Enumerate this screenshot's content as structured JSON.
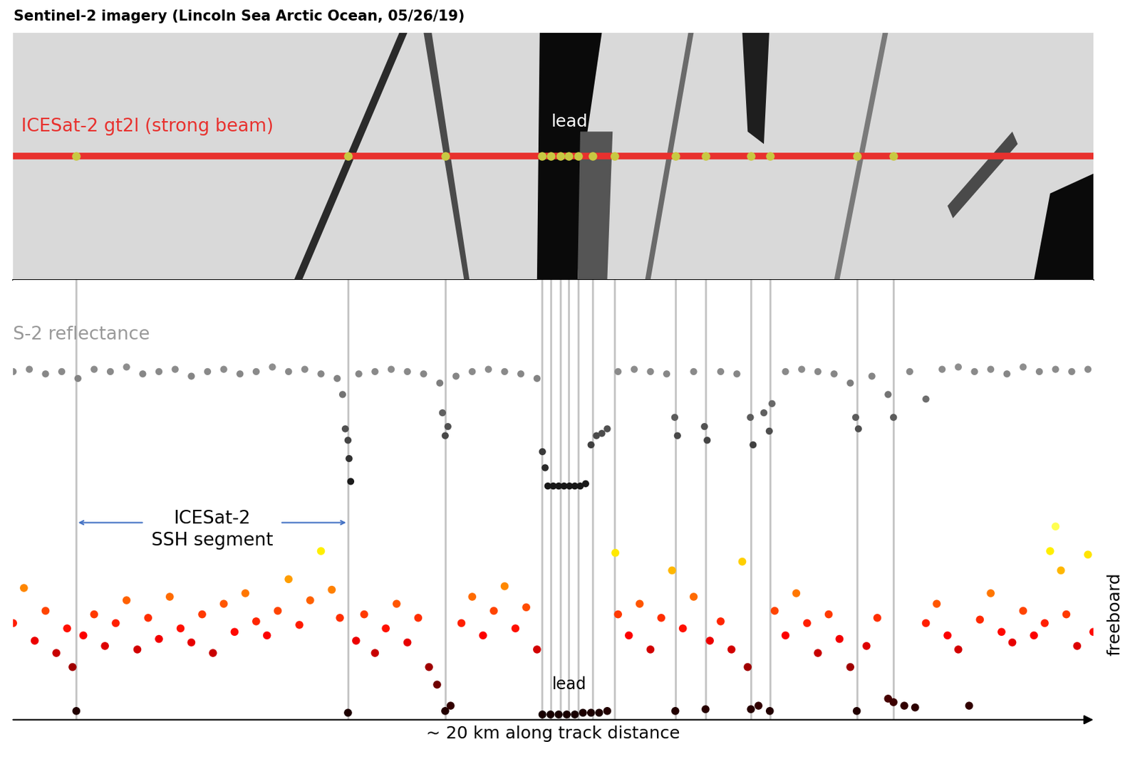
{
  "chart_data": [
    {
      "type": "image",
      "title": "Sentinel-2 imagery (Lincoln Sea Arctic Ocean, 05/26/19)",
      "beam_label": "ICESat-2 gt2l (strong beam)",
      "lead_label": "lead",
      "lead_segments": [
        1.17,
        6.2,
        8.0,
        9.79,
        9.95,
        10.13,
        10.29,
        10.46,
        10.73,
        11.14,
        12.26,
        12.82,
        13.66,
        14.01,
        15.62,
        16.3
      ],
      "xlim": [
        0,
        20
      ],
      "tick_labels": false
    },
    {
      "type": "scatter",
      "title": "S-2 reflectance",
      "x": [
        0.0,
        0.3,
        0.6,
        0.9,
        1.2,
        1.5,
        1.8,
        2.1,
        2.4,
        2.7,
        3.0,
        3.3,
        3.6,
        3.9,
        4.2,
        4.5,
        4.8,
        5.1,
        5.4,
        5.7,
        6.0,
        6.1,
        6.15,
        6.2,
        6.22,
        6.25,
        6.4,
        6.7,
        7.0,
        7.3,
        7.6,
        7.9,
        7.95,
        8.0,
        8.05,
        8.2,
        8.5,
        8.8,
        9.1,
        9.4,
        9.7,
        9.8,
        9.85,
        9.9,
        10.0,
        10.1,
        10.2,
        10.3,
        10.4,
        10.5,
        10.6,
        10.7,
        10.8,
        10.9,
        11.0,
        11.2,
        11.5,
        11.8,
        12.1,
        12.25,
        12.3,
        12.6,
        12.8,
        12.85,
        13.1,
        13.4,
        13.65,
        13.7,
        13.9,
        14.0,
        14.05,
        14.3,
        14.6,
        14.9,
        15.2,
        15.5,
        15.6,
        15.65,
        15.9,
        16.2,
        16.3,
        16.6,
        16.9,
        17.2,
        17.5,
        17.8,
        18.1,
        18.4,
        18.7,
        19.0,
        19.3,
        19.6,
        19.9
      ],
      "values": [
        0.6,
        0.61,
        0.59,
        0.6,
        0.57,
        0.61,
        0.6,
        0.62,
        0.59,
        0.6,
        0.61,
        0.58,
        0.6,
        0.61,
        0.59,
        0.6,
        0.62,
        0.6,
        0.61,
        0.59,
        0.57,
        0.5,
        0.35,
        0.3,
        0.22,
        0.12,
        0.59,
        0.6,
        0.61,
        0.6,
        0.59,
        0.55,
        0.42,
        0.32,
        0.36,
        0.58,
        0.6,
        0.61,
        0.6,
        0.59,
        0.57,
        0.25,
        0.18,
        0.1,
        0.1,
        0.1,
        0.1,
        0.1,
        0.1,
        0.1,
        0.11,
        0.28,
        0.32,
        0.33,
        0.35,
        0.6,
        0.61,
        0.6,
        0.59,
        0.4,
        0.32,
        0.6,
        0.36,
        0.3,
        0.6,
        0.59,
        0.4,
        0.28,
        0.42,
        0.34,
        0.46,
        0.6,
        0.61,
        0.6,
        0.59,
        0.55,
        0.4,
        0.35,
        0.58,
        0.5,
        0.4,
        0.6,
        0.48,
        0.61,
        0.62,
        0.6,
        0.61,
        0.59,
        0.62,
        0.6,
        0.61,
        0.6,
        0.61
      ],
      "xlim": [
        0,
        20
      ],
      "ylim": [
        0,
        1
      ],
      "xticks": [],
      "yticks": [],
      "tick_labels": false
    },
    {
      "type": "scatter",
      "ylabel": "freeboard",
      "xlabel": "~ 20 km along track distance",
      "x": [
        0.0,
        0.2,
        0.4,
        0.6,
        0.8,
        1.0,
        1.1,
        1.17,
        1.3,
        1.5,
        1.7,
        1.9,
        2.1,
        2.3,
        2.5,
        2.7,
        2.9,
        3.1,
        3.3,
        3.5,
        3.7,
        3.9,
        4.1,
        4.3,
        4.5,
        4.7,
        4.9,
        5.1,
        5.3,
        5.5,
        5.7,
        5.9,
        6.05,
        6.2,
        6.35,
        6.5,
        6.7,
        6.9,
        7.1,
        7.3,
        7.5,
        7.7,
        7.85,
        8.0,
        8.1,
        8.3,
        8.5,
        8.7,
        8.9,
        9.1,
        9.3,
        9.5,
        9.7,
        9.8,
        9.95,
        10.1,
        10.25,
        10.4,
        10.55,
        10.7,
        10.85,
        11.0,
        11.15,
        11.2,
        11.4,
        11.6,
        11.8,
        12.0,
        12.2,
        12.26,
        12.4,
        12.6,
        12.82,
        12.9,
        13.1,
        13.3,
        13.5,
        13.6,
        13.66,
        13.8,
        14.01,
        14.1,
        14.3,
        14.5,
        14.7,
        14.9,
        15.1,
        15.3,
        15.5,
        15.62,
        15.8,
        16.0,
        16.2,
        16.3,
        16.5,
        16.7,
        16.9,
        17.1,
        17.3,
        17.5,
        17.7,
        17.9,
        18.1,
        18.3,
        18.5,
        18.7,
        18.9,
        19.1,
        19.2,
        19.3,
        19.4,
        19.5,
        19.7,
        19.9,
        20.0
      ],
      "values": [
        0.55,
        0.75,
        0.45,
        0.62,
        0.38,
        0.52,
        0.3,
        0.05,
        0.48,
        0.6,
        0.42,
        0.55,
        0.68,
        0.4,
        0.58,
        0.46,
        0.7,
        0.52,
        0.44,
        0.6,
        0.38,
        0.66,
        0.5,
        0.72,
        0.56,
        0.48,
        0.62,
        0.8,
        0.54,
        0.68,
        0.96,
        0.74,
        0.58,
        0.04,
        0.45,
        0.6,
        0.38,
        0.52,
        0.66,
        0.44,
        0.58,
        0.3,
        0.2,
        0.05,
        0.08,
        0.55,
        0.7,
        0.48,
        0.62,
        0.76,
        0.52,
        0.64,
        0.4,
        0.03,
        0.03,
        0.03,
        0.03,
        0.03,
        0.04,
        0.04,
        0.04,
        0.05,
        0.95,
        0.6,
        0.48,
        0.66,
        0.4,
        0.58,
        0.85,
        0.05,
        0.52,
        0.7,
        0.06,
        0.45,
        0.56,
        0.4,
        0.9,
        0.3,
        0.06,
        0.08,
        0.05,
        0.62,
        0.48,
        0.72,
        0.55,
        0.38,
        0.6,
        0.46,
        0.3,
        0.05,
        0.42,
        0.58,
        0.12,
        0.1,
        0.08,
        0.07,
        0.55,
        0.66,
        0.48,
        0.4,
        0.08,
        0.57,
        0.72,
        0.5,
        0.44,
        0.62,
        0.48,
        0.55,
        0.96,
        1.1,
        0.85,
        0.6,
        0.42,
        0.94,
        0.5
      ],
      "xlim": [
        0,
        20
      ],
      "ylim": [
        0,
        1.2
      ],
      "xticks": [],
      "yticks": [],
      "annotations": [
        {
          "text": "lead",
          "x": 10.3,
          "y": 0.2
        }
      ],
      "ssh_segment": {
        "label": "ICESat-2\nSSH segment",
        "x": [
          1.17,
          6.2
        ]
      },
      "tick_labels": false
    }
  ]
}
